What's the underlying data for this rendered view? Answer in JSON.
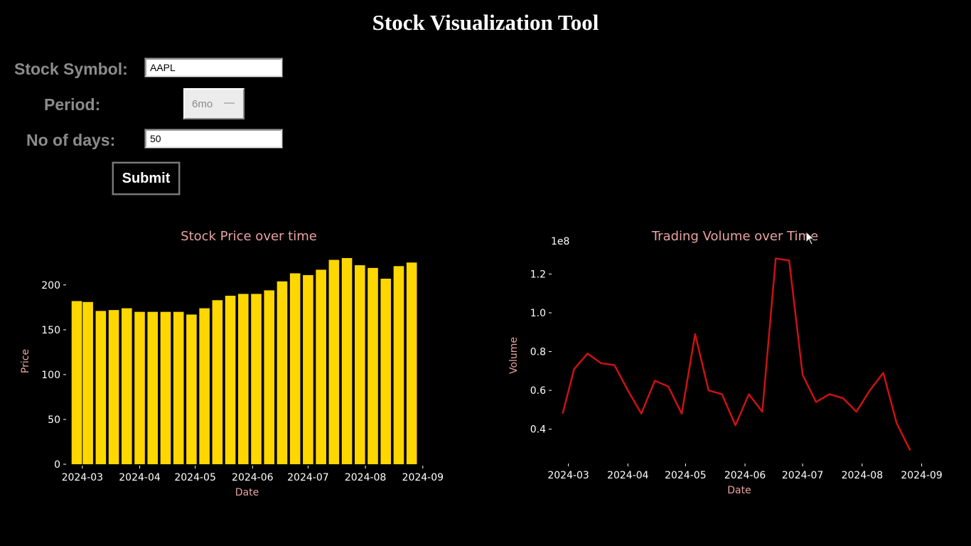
{
  "app": {
    "title": "Stock Visualization Tool"
  },
  "form": {
    "symbol_label": "Stock Symbol:",
    "symbol_value": "AAPL",
    "period_label": "Period:",
    "period_value": "6mo",
    "days_label": "No of days:",
    "days_value": "50",
    "submit_label": "Submit"
  },
  "colors": {
    "bar": "#ffd700",
    "line": "#cc1111",
    "label": "#e8a3a3",
    "axis": "#ffffff"
  },
  "chart_data": [
    {
      "type": "bar",
      "title": "Stock Price over time",
      "xlabel": "Date",
      "ylabel": "Price",
      "ylim": [
        0,
        230
      ],
      "xlim": [
        "2024-02-22",
        "2024-09-03"
      ],
      "yticks": [
        0,
        50,
        100,
        150,
        200
      ],
      "xticks": [
        "2024-03",
        "2024-04",
        "2024-05",
        "2024-06",
        "2024-07",
        "2024-08",
        "2024-09"
      ],
      "grid": false,
      "x": [
        "2024-02-27",
        "2024-03-04",
        "2024-03-11",
        "2024-03-18",
        "2024-03-25",
        "2024-04-01",
        "2024-04-08",
        "2024-04-15",
        "2024-04-22",
        "2024-04-29",
        "2024-05-06",
        "2024-05-13",
        "2024-05-20",
        "2024-05-27",
        "2024-06-03",
        "2024-06-10",
        "2024-06-17",
        "2024-06-24",
        "2024-07-01",
        "2024-07-08",
        "2024-07-15",
        "2024-07-22",
        "2024-07-29",
        "2024-08-05",
        "2024-08-12",
        "2024-08-19",
        "2024-08-26"
      ],
      "values": [
        182,
        181,
        171,
        172,
        174,
        170,
        170,
        170,
        170,
        167,
        174,
        183,
        188,
        190,
        190,
        194,
        204,
        213,
        211,
        217,
        228,
        230,
        222,
        219,
        207,
        221,
        225
      ]
    },
    {
      "type": "line",
      "title": "Trading Volume over Time",
      "xlabel": "Date",
      "ylabel": "Volume",
      "offset_label": "1e8",
      "ylim": [
        0.23,
        1.33
      ],
      "xlim": [
        "2024-02-22",
        "2024-09-03"
      ],
      "yticks": [
        0.4,
        0.6,
        0.8,
        1.0,
        1.2
      ],
      "xticks": [
        "2024-03",
        "2024-04",
        "2024-05",
        "2024-06",
        "2024-07",
        "2024-08",
        "2024-09"
      ],
      "grid": false,
      "x": [
        "2024-02-27",
        "2024-03-04",
        "2024-03-11",
        "2024-03-18",
        "2024-03-25",
        "2024-04-01",
        "2024-04-08",
        "2024-04-15",
        "2024-04-22",
        "2024-04-29",
        "2024-05-06",
        "2024-05-13",
        "2024-05-20",
        "2024-05-27",
        "2024-06-03",
        "2024-06-10",
        "2024-06-17",
        "2024-06-24",
        "2024-07-01",
        "2024-07-08",
        "2024-07-15",
        "2024-07-22",
        "2024-07-29",
        "2024-08-05",
        "2024-08-12",
        "2024-08-19",
        "2024-08-26"
      ],
      "values": [
        0.48,
        0.71,
        0.79,
        0.74,
        0.73,
        0.6,
        0.48,
        0.65,
        0.62,
        0.48,
        0.89,
        0.6,
        0.58,
        0.42,
        0.58,
        0.49,
        1.28,
        1.27,
        0.68,
        0.54,
        0.58,
        0.56,
        0.49,
        0.6,
        0.69,
        0.43,
        0.29
      ]
    }
  ]
}
